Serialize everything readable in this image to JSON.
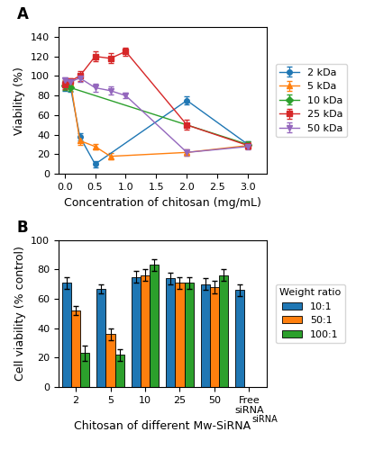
{
  "chart_data": [
    {
      "type": "line",
      "annotations": [
        "A"
      ],
      "xlabel": "Concentration of chitosan (mg/mL)",
      "ylabel": "Viability (%)",
      "x": [
        0.0,
        0.1,
        0.25,
        0.5,
        0.75,
        1.0,
        2.0,
        3.0
      ],
      "series": [
        {
          "name": "2 kDa",
          "marker": "circle",
          "values": [
            90,
            88,
            38,
            10,
            null,
            null,
            75,
            30
          ],
          "yerr": [
            5,
            4,
            4,
            3,
            null,
            null,
            4,
            3
          ]
        },
        {
          "name": "5 kDa",
          "marker": "triangle_up",
          "values": [
            92,
            93,
            34,
            28,
            18,
            null,
            22,
            29
          ],
          "yerr": [
            4,
            3,
            4,
            3,
            3,
            null,
            3,
            3
          ]
        },
        {
          "name": "10 kDa",
          "marker": "diamond",
          "values": [
            90,
            88,
            null,
            null,
            null,
            null,
            null,
            30
          ],
          "yerr": [
            4,
            3,
            null,
            null,
            null,
            null,
            null,
            3
          ]
        },
        {
          "name": "25 kDa",
          "marker": "square",
          "values": [
            91,
            95,
            100,
            120,
            118,
            125,
            50,
            29
          ],
          "yerr": [
            4,
            3,
            5,
            5,
            5,
            4,
            5,
            3
          ]
        },
        {
          "name": "50 kDa",
          "marker": "triangle_down",
          "values": [
            96,
            94,
            98,
            88,
            85,
            80,
            22,
            28
          ],
          "yerr": [
            3,
            3,
            4,
            4,
            4,
            3,
            3,
            3
          ]
        }
      ],
      "xlim": [
        -0.1,
        3.3
      ],
      "ylim": [
        0,
        150
      ],
      "xticks": [
        0.0,
        0.5,
        1.0,
        1.5,
        2.0,
        2.5,
        3.0
      ],
      "yticks": [
        0,
        20,
        40,
        60,
        80,
        100,
        120,
        140
      ],
      "legend": "right"
    },
    {
      "type": "bar",
      "annotations": [
        "B",
        "siRNA"
      ],
      "xlabel": "Chitosan of different Mw-SiRNA",
      "ylabel": "Cell viability (% control)",
      "categories": [
        "2",
        "5",
        "10",
        "25",
        "50",
        "Free\nsiRNA"
      ],
      "series": [
        {
          "name": "10:1",
          "values": [
            71,
            67,
            75,
            74,
            70,
            66
          ],
          "yerr": [
            4,
            3,
            4,
            4,
            4,
            4
          ]
        },
        {
          "name": "50:1",
          "values": [
            52,
            36,
            76,
            71,
            68,
            null
          ],
          "yerr": [
            3,
            4,
            4,
            4,
            4,
            null
          ]
        },
        {
          "name": "100:1",
          "values": [
            23,
            22,
            83,
            71,
            76,
            null
          ],
          "yerr": [
            5,
            4,
            4,
            4,
            4,
            null
          ]
        }
      ],
      "ylim": [
        0,
        100
      ],
      "yticks": [
        0,
        20,
        40,
        60,
        80,
        100
      ],
      "legend": "right",
      "legend_title": "Weight ratio"
    }
  ]
}
